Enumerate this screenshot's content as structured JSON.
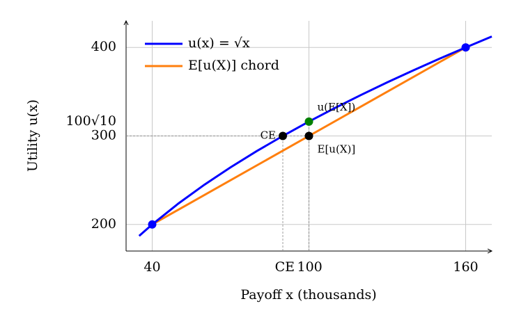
{
  "chart_data": {
    "type": "line",
    "xlabel": "Payoff x (thousands)",
    "ylabel": "Utility u(x)",
    "xlim": [
      30,
      170
    ],
    "ylim": [
      170,
      430
    ],
    "xticks": [
      40,
      {
        "value": 90,
        "label": "CE"
      },
      100,
      160
    ],
    "yticks": [
      200,
      300,
      {
        "value": 316.23,
        "label": "100√10"
      },
      400
    ],
    "grid": true,
    "legend": "upper left",
    "series": [
      {
        "name": "u(x) = √x",
        "color": "#0000ff",
        "x": [
          35,
          40,
          50,
          60,
          70,
          80,
          90,
          100,
          110,
          120,
          130,
          140,
          150,
          160,
          170
        ],
        "values": [
          187.08,
          200,
          223.61,
          244.95,
          264.58,
          282.84,
          300,
          316.23,
          331.66,
          346.41,
          360.56,
          374.17,
          387.3,
          400,
          412.31
        ]
      },
      {
        "name": "E[u(X)] chord",
        "color": "#ff7f0e",
        "x": [
          40,
          160
        ],
        "values": [
          200,
          400
        ]
      }
    ],
    "markers": [
      {
        "color": "#0000ff",
        "x": [
          40,
          160
        ],
        "values": [
          200,
          400
        ]
      },
      {
        "color": "#008000",
        "x": [
          100
        ],
        "values": [
          316.23
        ],
        "labels": [
          "u(E[X])"
        ]
      },
      {
        "color": "#000000",
        "x": [
          90,
          100
        ],
        "values": [
          300,
          300
        ],
        "labels": [
          "CE",
          "E[u(X)]"
        ]
      }
    ]
  }
}
